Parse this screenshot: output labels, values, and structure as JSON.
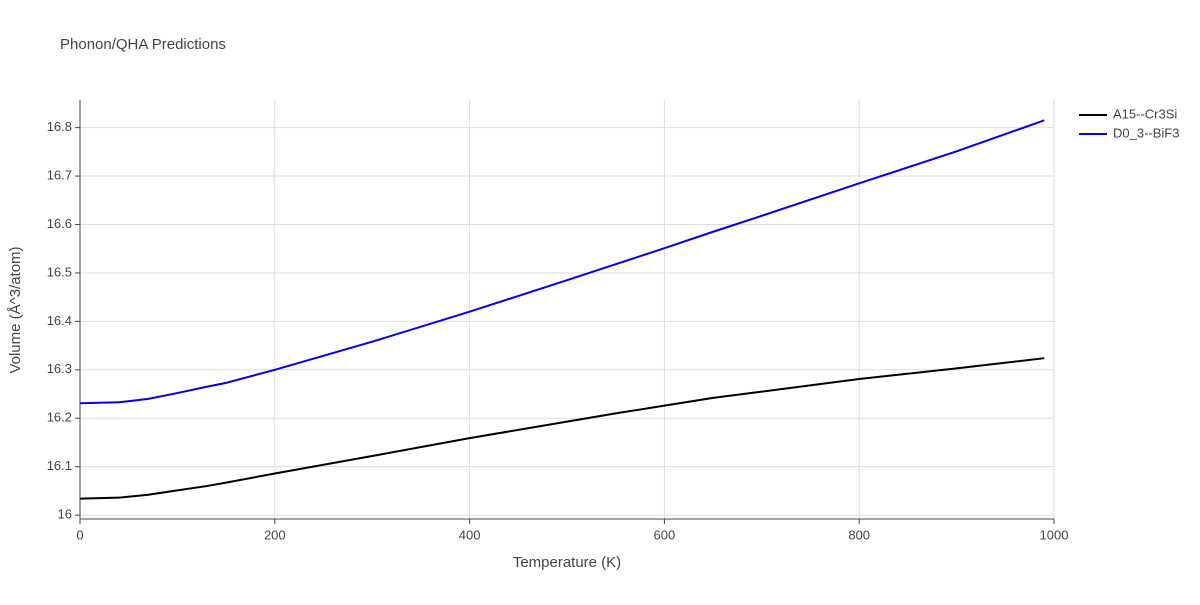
{
  "chart_data": {
    "type": "line",
    "title": "Phonon/QHA Predictions",
    "xlabel": "Temperature (K)",
    "ylabel": "Volume (Å^3/atom)",
    "x": [
      0,
      40,
      70,
      100,
      130,
      150,
      200,
      300,
      400,
      500,
      550,
      600,
      650,
      700,
      800,
      900,
      990
    ],
    "series": [
      {
        "name": "A15--Cr3Si",
        "color": "#000000",
        "values": [
          16.034,
          16.036,
          16.042,
          16.051,
          16.06,
          16.067,
          16.086,
          16.122,
          16.159,
          16.193,
          16.21,
          16.226,
          16.242,
          16.255,
          16.281,
          16.303,
          16.324
        ]
      },
      {
        "name": "D0_3--BiF3",
        "color": "#0000ee",
        "values": [
          16.231,
          16.233,
          16.24,
          16.252,
          16.265,
          16.273,
          16.3,
          16.358,
          16.42,
          16.485,
          16.518,
          16.551,
          16.585,
          16.618,
          16.685,
          16.751,
          16.815
        ]
      }
    ],
    "xlim": [
      0,
      1000
    ],
    "xticks": [
      0,
      200,
      400,
      600,
      800,
      1000
    ],
    "ylim": [
      15.992,
      16.857
    ],
    "yticks": [
      16,
      16.1,
      16.2,
      16.3,
      16.4,
      16.5,
      16.6,
      16.7,
      16.8
    ],
    "grid": true,
    "legend": "outside-right"
  }
}
